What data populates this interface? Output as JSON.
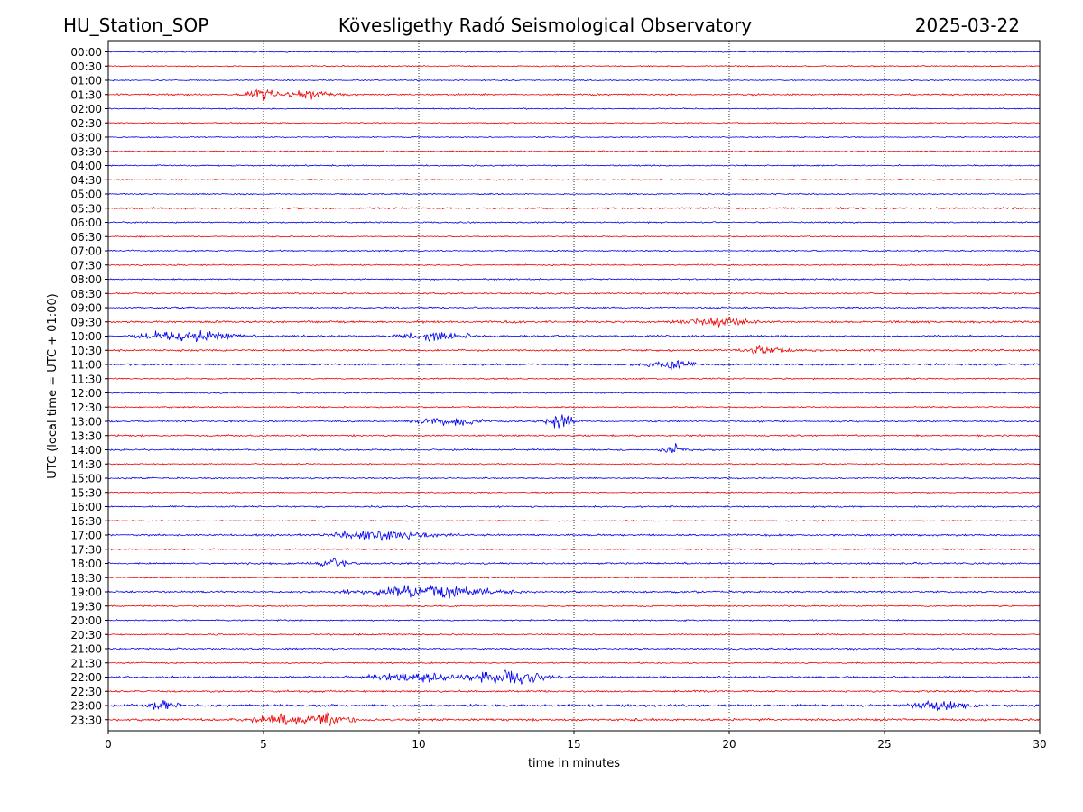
{
  "header": {
    "station": "HU_Station_SOP",
    "observatory": "Kövesligethy Radó Seismological Observatory",
    "date": "2025-03-22"
  },
  "chart_data": {
    "type": "line",
    "title": "Kövesligethy Radó Seismological Observatory",
    "xlabel": "time in minutes",
    "ylabel": "UTC (local time = UTC + 01:00)",
    "xlim": [
      0,
      30
    ],
    "x_ticks": [
      "0",
      "5",
      "10",
      "15",
      "20",
      "25",
      "30"
    ],
    "grid": "vertical dotted lines at 5-minute ticks",
    "trace_colors": [
      "#0000ee",
      "#ee0000"
    ],
    "rows": [
      "00:00",
      "00:30",
      "01:00",
      "01:30",
      "02:00",
      "02:30",
      "03:00",
      "03:30",
      "04:00",
      "04:30",
      "05:00",
      "05:30",
      "06:00",
      "06:30",
      "07:00",
      "07:30",
      "08:00",
      "08:30",
      "09:00",
      "09:30",
      "10:00",
      "10:30",
      "11:00",
      "11:30",
      "12:00",
      "12:30",
      "13:00",
      "13:30",
      "14:00",
      "14:30",
      "15:00",
      "15:30",
      "16:00",
      "16:30",
      "17:00",
      "17:30",
      "18:00",
      "18:30",
      "19:00",
      "19:30",
      "20:00",
      "20:30",
      "21:00",
      "21:30",
      "22:00",
      "22:30",
      "23:00",
      "23:30"
    ],
    "noise_level": [
      0.5,
      0.5,
      0.5,
      0.7,
      0.5,
      0.5,
      0.5,
      0.6,
      0.6,
      0.5,
      0.6,
      0.7,
      0.6,
      0.5,
      0.6,
      0.6,
      0.6,
      0.7,
      0.7,
      0.9,
      0.8,
      0.8,
      0.8,
      0.6,
      0.6,
      0.6,
      0.7,
      0.7,
      0.7,
      0.5,
      0.6,
      0.5,
      0.7,
      0.5,
      0.8,
      0.6,
      0.8,
      0.6,
      0.8,
      0.6,
      0.6,
      0.6,
      0.7,
      0.6,
      0.8,
      0.8,
      1.0,
      1.0
    ],
    "events": [
      {
        "row": "01:30",
        "minute": 4.9,
        "amplitude": 2.4,
        "duration": 0.6
      },
      {
        "row": "01:30",
        "minute": 6.5,
        "amplitude": 1.6,
        "duration": 1.2
      },
      {
        "row": "09:30",
        "minute": 19.7,
        "amplitude": 1.2,
        "duration": 1.5
      },
      {
        "row": "10:00",
        "minute": 2.5,
        "amplitude": 2.0,
        "duration": 2.0
      },
      {
        "row": "10:00",
        "minute": 10.5,
        "amplitude": 1.3,
        "duration": 1.5
      },
      {
        "row": "10:30",
        "minute": 21.2,
        "amplitude": 1.2,
        "duration": 1.0
      },
      {
        "row": "11:00",
        "minute": 18.1,
        "amplitude": 1.3,
        "duration": 1.0
      },
      {
        "row": "13:00",
        "minute": 14.5,
        "amplitude": 2.5,
        "duration": 0.7
      },
      {
        "row": "13:00",
        "minute": 11.0,
        "amplitude": 1.2,
        "duration": 1.5
      },
      {
        "row": "14:00",
        "minute": 18.2,
        "amplitude": 1.7,
        "duration": 0.5
      },
      {
        "row": "17:00",
        "minute": 9.0,
        "amplitude": 1.4,
        "duration": 2.5
      },
      {
        "row": "18:00",
        "minute": 7.3,
        "amplitude": 1.3,
        "duration": 0.8
      },
      {
        "row": "19:00",
        "minute": 10.3,
        "amplitude": 2.0,
        "duration": 3.0
      },
      {
        "row": "22:00",
        "minute": 12.8,
        "amplitude": 2.2,
        "duration": 1.6
      },
      {
        "row": "22:00",
        "minute": 9.8,
        "amplitude": 1.3,
        "duration": 2.0
      },
      {
        "row": "23:00",
        "minute": 1.8,
        "amplitude": 1.5,
        "duration": 0.8
      },
      {
        "row": "23:00",
        "minute": 26.8,
        "amplitude": 1.6,
        "duration": 1.2
      },
      {
        "row": "23:30",
        "minute": 7.2,
        "amplitude": 1.8,
        "duration": 1.0
      },
      {
        "row": "23:30",
        "minute": 5.5,
        "amplitude": 1.5,
        "duration": 1.2
      }
    ]
  }
}
